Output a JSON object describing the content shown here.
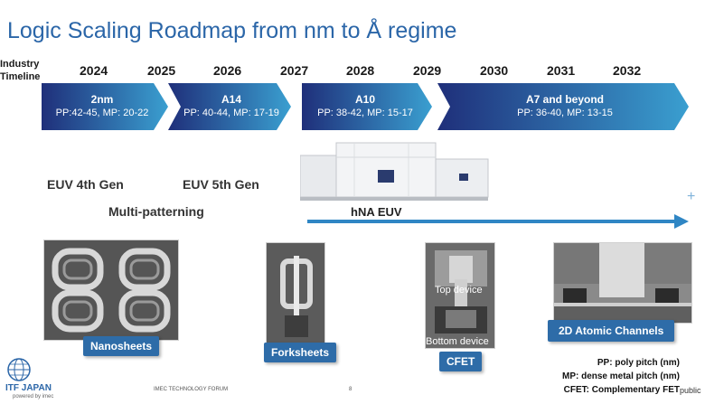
{
  "title": "Logic Scaling Roadmap from nm to Å regime",
  "timeline_label": "Industry Timeline",
  "years": [
    "2024",
    "2025",
    "2026",
    "2027",
    "2028",
    "2029",
    "2030",
    "2031",
    "2032"
  ],
  "nodes": [
    {
      "name": "2nm",
      "detail": "PP:42-45, MP: 20-22"
    },
    {
      "name": "A14",
      "detail": "PP: 40-44, MP: 17-19"
    },
    {
      "name": "A10",
      "detail": "PP: 38-42, MP: 15-17"
    },
    {
      "name": "A7 and beyond",
      "detail": "PP: 36-40, MP: 13-15"
    }
  ],
  "lithography": {
    "euv4": "EUV 4th Gen",
    "euv5": "EUV 5th Gen",
    "multi": "Multi-patterning",
    "hna": "hNA EUV"
  },
  "devices": {
    "nanosheets": "Nanosheets",
    "forksheets": "Forksheets",
    "cfet": "CFET",
    "cfet_top": "Top device",
    "cfet_bottom": "Bottom device",
    "atomic": "2D Atomic Channels"
  },
  "legend": {
    "pp": "PP: poly pitch (nm)",
    "mp": "MP: dense metal pitch (nm)",
    "cfet": "CFET: Complementary FET"
  },
  "footer": {
    "logo": "ITF JAPAN",
    "logo_sub": "powered by imec",
    "forum": "IMEC TECHNOLOGY FORUM",
    "page": "8",
    "classification": "public"
  },
  "colors": {
    "title": "#2b66a8",
    "chevron_dark": "#1f2f7a",
    "chevron_light": "#3a9fd0",
    "arrow": "#2f86c4",
    "tag": "#2e6ca8"
  }
}
